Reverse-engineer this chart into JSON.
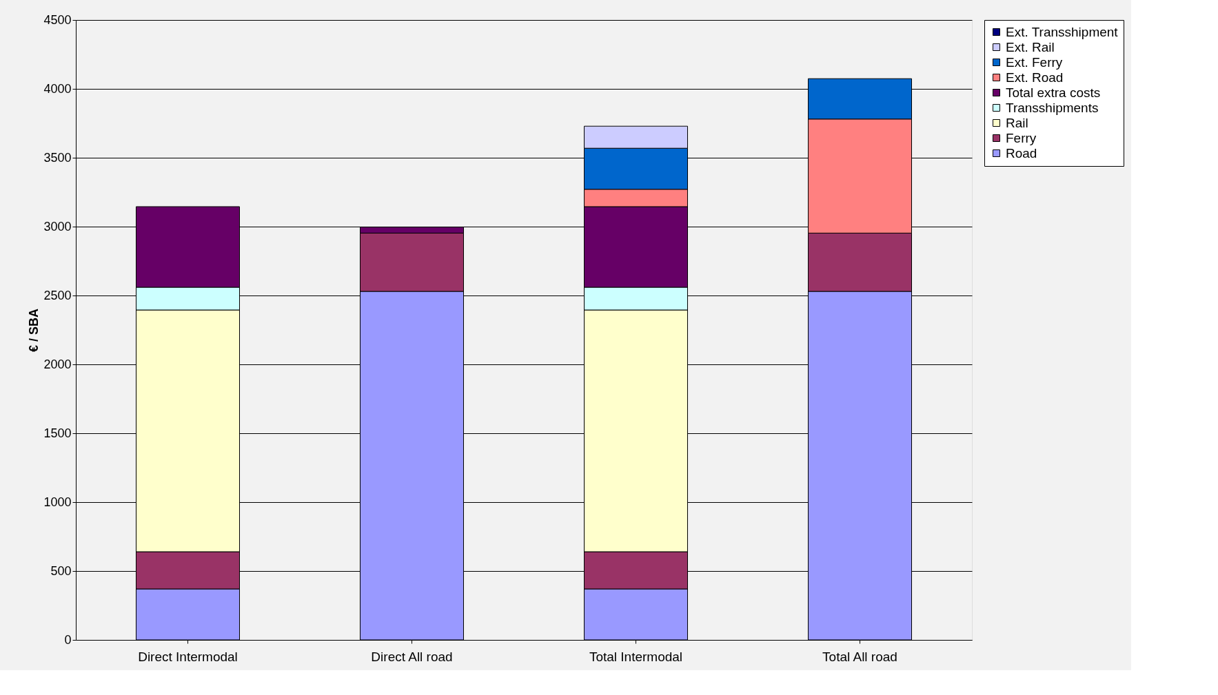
{
  "chart_data": {
    "type": "bar",
    "stacked": true,
    "ylabel": "€ / SBA",
    "categories": [
      "Direct Intermodal",
      "Direct All road",
      "Total Intermodal",
      "Total All road"
    ],
    "series": [
      {
        "name": "Road",
        "color": "#9999ff",
        "values": [
          370,
          2530,
          370,
          2530
        ]
      },
      {
        "name": "Ferry",
        "color": "#993366",
        "values": [
          270,
          423,
          270,
          423
        ]
      },
      {
        "name": "Rail",
        "color": "#ffffcc",
        "values": [
          1755,
          null,
          1755,
          null
        ]
      },
      {
        "name": "Transshipments",
        "color": "#ccffff",
        "values": [
          165,
          null,
          165,
          null
        ]
      },
      {
        "name": "Total extra costs",
        "color": "#660066",
        "values": [
          585,
          44,
          585,
          null
        ]
      },
      {
        "name": "Ext. Road",
        "color": "#ff8080",
        "values": [
          null,
          null,
          126,
          828
        ]
      },
      {
        "name": "Ext. Ferry",
        "color": "#0066cc",
        "values": [
          null,
          null,
          298,
          293
        ]
      },
      {
        "name": "Ext. Rail",
        "color": "#ccccff",
        "values": [
          null,
          null,
          160,
          null
        ]
      },
      {
        "name": "Ext. Transshipment",
        "color": "#000080",
        "values": [
          null,
          null,
          null,
          null
        ]
      }
    ],
    "ylim": [
      0,
      4500
    ],
    "yticks": [
      0,
      500,
      1000,
      1500,
      2000,
      2500,
      3000,
      3500,
      4000,
      4500
    ],
    "grid": "y",
    "legend": "right"
  }
}
